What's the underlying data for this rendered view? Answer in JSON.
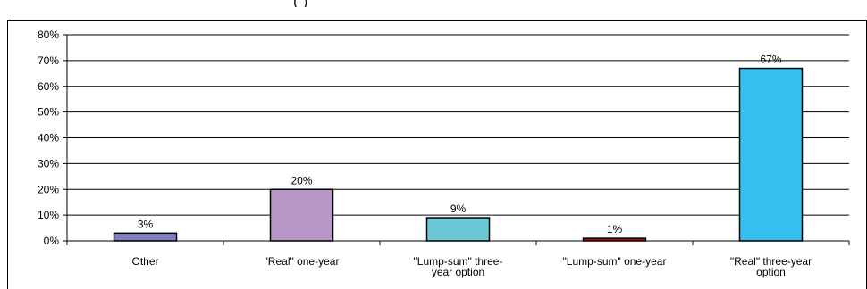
{
  "chart_data": {
    "type": "bar",
    "title": "",
    "xlabel": "",
    "ylabel": "",
    "ylim": [
      0,
      80
    ],
    "yticks": [
      "0%",
      "10%",
      "20%",
      "30%",
      "40%",
      "50%",
      "60%",
      "70%",
      "80%"
    ],
    "grid": true,
    "categories": [
      [
        "Other"
      ],
      [
        "\"Real\" one-year"
      ],
      [
        "\"Lump-sum\" three-",
        "year option"
      ],
      [
        "\"Lump-sum\" one-year"
      ],
      [
        "\"Real\" three-year",
        "option"
      ]
    ],
    "values": [
      3,
      20,
      9,
      1,
      67
    ],
    "value_labels": [
      "3%",
      "20%",
      "9%",
      "1%",
      "67%"
    ],
    "colors": [
      "#8080c0",
      "#b996c8",
      "#6ec8d4",
      "#b01010",
      "#33c0f0"
    ]
  }
}
